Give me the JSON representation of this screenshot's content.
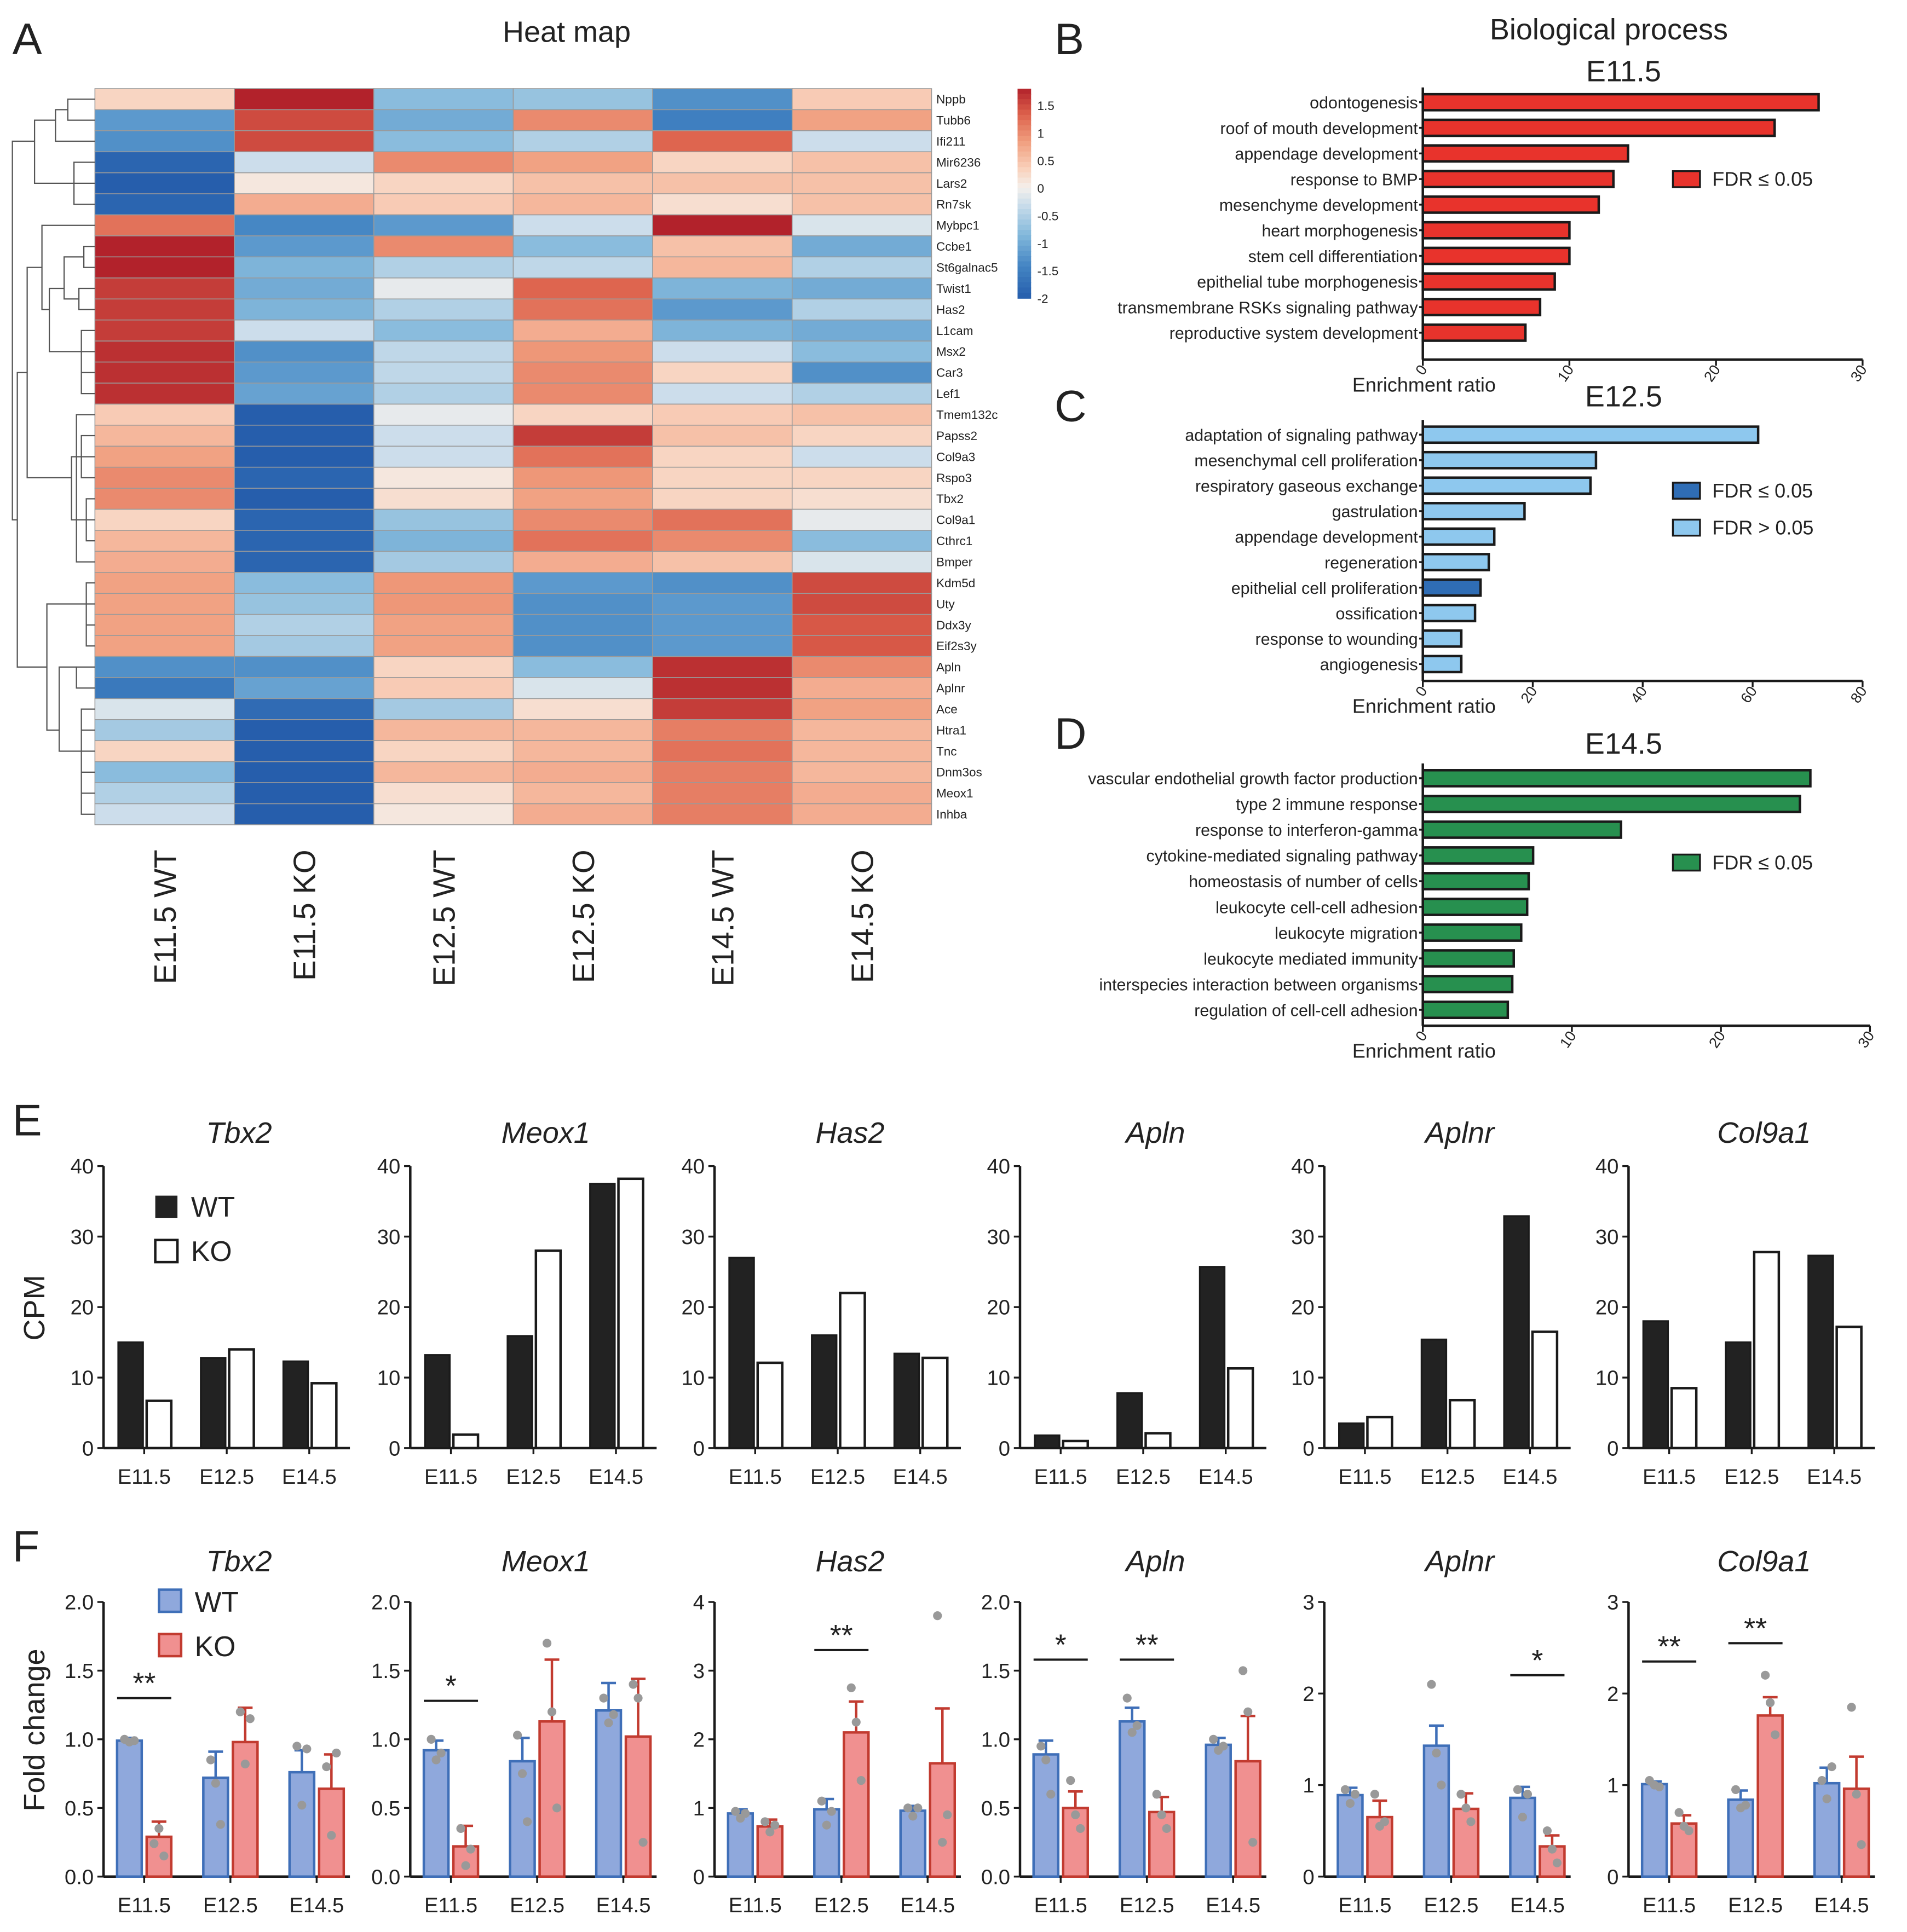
{
  "panel_letters": {
    "a": "A",
    "b": "B",
    "c": "C",
    "d": "D",
    "e": "E",
    "f": "F"
  },
  "colors": {
    "fdr_sig_red": "#e8332c",
    "fdr_sig_blue": "#2f6db5",
    "fdr_ns_lightblue": "#8ec8ee",
    "fdr_sig_green": "#27904f",
    "wt_black": "#222222",
    "qpcr_wt": "#8fa8dc",
    "qpcr_ko": "#f09090",
    "qpcr_wt_err": "#3f6fb8",
    "qpcr_ko_err": "#c23b30",
    "point": "#999999"
  },
  "chart_data": [
    {
      "id": "A",
      "type": "heatmap",
      "title": "Heat map",
      "columns": [
        "E11.5 WT",
        "E11.5 KO",
        "E12.5 WT",
        "E12.5 KO",
        "E14.5 WT",
        "E14.5 KO"
      ],
      "rows": [
        "Nppb",
        "Tubb6",
        "Ifi211",
        "Mir6236",
        "Lars2",
        "Rn7sk",
        "Mybpc1",
        "Ccbe1",
        "St6galnac5",
        "Twist1",
        "Has2",
        "L1cam",
        "Msx2",
        "Car3",
        "Lef1",
        "Tmem132c",
        "Papss2",
        "Col9a3",
        "Rspo3",
        "Tbx2",
        "Col9a1",
        "Cthrc1",
        "Bmper",
        "Kdm5d",
        "Uty",
        "Ddx3y",
        "Eif2s3y",
        "Apln",
        "Aplnr",
        "Ace",
        "Htra1",
        "Tnc",
        "Dnm3os",
        "Meox1",
        "Inhba"
      ],
      "values": [
        [
          0.3,
          1.8,
          -0.8,
          -0.7,
          -1.3,
          0.4
        ],
        [
          -1.2,
          1.5,
          -1.0,
          1.0,
          -1.5,
          0.8
        ],
        [
          -1.3,
          1.5,
          -0.8,
          -0.5,
          1.3,
          -0.3
        ],
        [
          -1.9,
          -0.3,
          1.0,
          0.8,
          0.3,
          0.5
        ],
        [
          -2.0,
          0.1,
          0.3,
          0.5,
          0.5,
          0.5
        ],
        [
          -1.9,
          0.7,
          0.4,
          0.6,
          0.2,
          0.5
        ],
        [
          1.2,
          -1.4,
          -1.2,
          -0.3,
          1.8,
          -0.2
        ],
        [
          1.8,
          -1.2,
          1.0,
          -0.8,
          0.5,
          -1.0
        ],
        [
          1.8,
          -0.9,
          -0.5,
          -0.4,
          0.6,
          -0.5
        ],
        [
          1.6,
          -1.0,
          -0.1,
          1.3,
          -0.9,
          -1.0
        ],
        [
          1.6,
          -0.9,
          -0.5,
          1.2,
          -1.2,
          -0.5
        ],
        [
          1.6,
          -0.3,
          -0.8,
          0.7,
          -0.9,
          -1.0
        ],
        [
          1.7,
          -1.3,
          -0.4,
          0.9,
          -0.3,
          -0.8
        ],
        [
          1.7,
          -1.2,
          -0.4,
          1.0,
          0.3,
          -1.3
        ],
        [
          1.7,
          -1.1,
          -0.5,
          1.0,
          -0.3,
          -0.5
        ],
        [
          0.4,
          -2.0,
          -0.1,
          0.3,
          0.4,
          0.5
        ],
        [
          0.6,
          -2.0,
          -0.3,
          1.6,
          0.5,
          0.3
        ],
        [
          0.8,
          -2.0,
          -0.3,
          1.2,
          0.3,
          -0.3
        ],
        [
          1.0,
          -1.9,
          0.1,
          0.9,
          0.3,
          0.3
        ],
        [
          1.0,
          -2.0,
          0.2,
          0.8,
          0.3,
          0.2
        ],
        [
          0.3,
          -1.9,
          -0.7,
          1.0,
          1.2,
          -0.1
        ],
        [
          0.6,
          -1.9,
          -0.9,
          1.2,
          1.0,
          -0.8
        ],
        [
          0.7,
          -1.9,
          -0.6,
          0.7,
          0.5,
          -0.2
        ],
        [
          0.8,
          -0.8,
          0.9,
          -1.2,
          -1.3,
          1.5
        ],
        [
          0.8,
          -0.7,
          0.9,
          -1.3,
          -1.2,
          1.5
        ],
        [
          0.8,
          -0.5,
          0.8,
          -1.3,
          -1.2,
          1.4
        ],
        [
          0.8,
          -0.6,
          0.8,
          -1.3,
          -1.2,
          1.4
        ],
        [
          -1.3,
          -1.3,
          0.3,
          -0.8,
          1.7,
          1.0
        ],
        [
          -1.6,
          -1.1,
          0.4,
          -0.2,
          1.7,
          0.7
        ],
        [
          -0.2,
          -1.8,
          -0.6,
          0.2,
          1.6,
          0.8
        ],
        [
          -0.6,
          -2.0,
          0.6,
          0.6,
          1.1,
          0.6
        ],
        [
          0.3,
          -2.0,
          0.3,
          0.6,
          1.2,
          0.6
        ],
        [
          -0.8,
          -2.0,
          0.6,
          0.7,
          1.1,
          0.6
        ],
        [
          -0.5,
          -2.0,
          0.2,
          0.6,
          1.1,
          0.7
        ],
        [
          -0.3,
          -2.0,
          0.1,
          0.7,
          1.1,
          0.7
        ]
      ],
      "colorbar": {
        "range": [
          -2,
          1.8
        ],
        "ticks": [
          "1.5",
          "1",
          "0.5",
          "0",
          "-0.5",
          "-1",
          "-1.5",
          "-2"
        ]
      }
    },
    {
      "id": "B",
      "type": "bar",
      "orientation": "horizontal",
      "supertitle": "Biological process",
      "title": "E11.5",
      "xlabel": "Enrichment ratio",
      "xlim": [
        0,
        30
      ],
      "xticks": [
        "0",
        "10",
        "20",
        "30"
      ],
      "categories": [
        "odontogenesis",
        "roof of mouth development",
        "appendage development",
        "response to BMP",
        "mesenchyme development",
        "heart morphogenesis",
        "stem cell differentiation",
        "epithelial tube morphogenesis",
        "transmembrane RSKs signaling pathway",
        "reproductive system development"
      ],
      "values": [
        27,
        24,
        14,
        13,
        12,
        10,
        10,
        9,
        8,
        7
      ],
      "significant": [
        true,
        true,
        true,
        true,
        true,
        true,
        true,
        true,
        true,
        true
      ],
      "legend": [
        {
          "label": "FDR ≤ 0.05",
          "color": "#e8332c"
        }
      ]
    },
    {
      "id": "C",
      "type": "bar",
      "orientation": "horizontal",
      "title": "E12.5",
      "xlabel": "Enrichment ratio",
      "xlim": [
        0,
        80
      ],
      "xticks": [
        "0",
        "20",
        "40",
        "60",
        "80"
      ],
      "categories": [
        "adaptation of signaling pathway",
        "mesenchymal cell proliferation",
        "respiratory gaseous exchange",
        "gastrulation",
        "appendage development",
        "regeneration",
        "epithelial cell proliferation",
        "ossification",
        "response to wounding",
        "angiogenesis"
      ],
      "values": [
        61,
        31.5,
        30.5,
        18.5,
        13,
        12,
        10.5,
        9.5,
        7,
        7
      ],
      "significant": [
        false,
        false,
        false,
        false,
        false,
        false,
        true,
        false,
        false,
        false
      ],
      "legend": [
        {
          "label": "FDR ≤ 0.05",
          "color": "#2f6db5"
        },
        {
          "label": "FDR > 0.05",
          "color": "#8ec8ee"
        }
      ]
    },
    {
      "id": "D",
      "type": "bar",
      "orientation": "horizontal",
      "title": "E14.5",
      "xlabel": "Enrichment ratio",
      "xlim": [
        0,
        30
      ],
      "xticks": [
        "0",
        "10",
        "20",
        "30"
      ],
      "categories": [
        "vascular endothelial growth factor production",
        "type 2 immune response",
        "response to interferon-gamma",
        "cytokine-mediated signaling pathway",
        "homeostasis of number of cells",
        "leukocyte cell-cell adhesion",
        "leukocyte migration",
        "leukocyte mediated immunity",
        "interspecies interaction between organisms",
        "regulation of cell-cell adhesion"
      ],
      "values": [
        26,
        25.3,
        13.3,
        7.4,
        7.1,
        7,
        6.6,
        6.1,
        6,
        5.7
      ],
      "significant": [
        true,
        true,
        true,
        true,
        true,
        true,
        true,
        true,
        true,
        true
      ],
      "legend": [
        {
          "label": "FDR ≤ 0.05",
          "color": "#27904f"
        }
      ]
    },
    {
      "id": "E",
      "type": "bar",
      "ylabel": "CPM",
      "ylim": [
        0,
        40
      ],
      "yticks": [
        "0",
        "10",
        "20",
        "30",
        "40"
      ],
      "categories": [
        "E11.5",
        "E12.5",
        "E14.5"
      ],
      "legend": [
        "WT",
        "KO"
      ],
      "genes": [
        {
          "name": "Tbx2",
          "wt": [
            15,
            12.8,
            12.3
          ],
          "ko": [
            6.7,
            14,
            9.2
          ]
        },
        {
          "name": "Meox1",
          "wt": [
            13.2,
            15.9,
            37.5
          ],
          "ko": [
            1.9,
            28,
            38.2
          ]
        },
        {
          "name": "Has2",
          "wt": [
            27,
            16,
            13.4
          ],
          "ko": [
            12.1,
            22,
            12.8
          ]
        },
        {
          "name": "Apln",
          "wt": [
            1.8,
            7.8,
            25.7
          ],
          "ko": [
            1,
            2.1,
            11.3
          ]
        },
        {
          "name": "Aplnr",
          "wt": [
            3.5,
            15.4,
            32.9
          ],
          "ko": [
            4.4,
            6.8,
            16.5
          ]
        },
        {
          "name": "Col9a1",
          "wt": [
            18,
            15,
            27.3
          ],
          "ko": [
            8.5,
            27.8,
            17.2
          ]
        }
      ]
    },
    {
      "id": "F",
      "type": "bar",
      "ylabel": "Fold change",
      "categories": [
        "E11.5",
        "E12.5",
        "E14.5"
      ],
      "legend": [
        "WT",
        "KO"
      ],
      "genes": [
        {
          "name": "Tbx2",
          "ylim": [
            0,
            2
          ],
          "yticks": [
            "0.0",
            "0.5",
            "1.0",
            "1.5",
            "2.0"
          ],
          "wt": [
            0.99,
            0.72,
            0.76
          ],
          "wt_err": [
            0.02,
            0.19,
            0.16
          ],
          "ko": [
            0.29,
            0.98,
            0.64
          ],
          "ko_err": [
            0.11,
            0.25,
            0.25
          ],
          "wt_pts": [
            [
              1,
              0.98,
              0.99
            ],
            [
              0.85,
              0.68,
              0.38
            ],
            [
              0.95,
              0.52,
              0.93
            ]
          ],
          "ko_pts": [
            [
              0.24,
              0.35,
              0.15
            ],
            [
              1.2,
              0.82,
              1.15
            ],
            [
              0.8,
              0.3,
              0.9
            ]
          ],
          "sig": [
            {
              "cat": 0,
              "text": "**",
              "y": 1.3
            }
          ]
        },
        {
          "name": "Meox1",
          "ylim": [
            0,
            2
          ],
          "yticks": [
            "0.0",
            "0.5",
            "1.0",
            "1.5",
            "2.0"
          ],
          "wt": [
            0.92,
            0.84,
            1.21
          ],
          "wt_err": [
            0.07,
            0.17,
            0.2
          ],
          "ko": [
            0.22,
            1.13,
            1.02
          ],
          "ko_err": [
            0.15,
            0.45,
            0.42
          ],
          "wt_pts": [
            [
              1,
              0.85,
              0.9
            ],
            [
              1.03,
              0.75,
              0.4
            ],
            [
              1.3,
              1.12,
              1.18
            ]
          ],
          "ko_pts": [
            [
              0.35,
              0.08,
              0.2
            ],
            [
              1.7,
              1.2,
              0.5
            ],
            [
              1.4,
              1.3,
              0.25
            ]
          ],
          "sig": [
            {
              "cat": 0,
              "text": "*",
              "y": 1.28
            }
          ]
        },
        {
          "name": "Has2",
          "ylim": [
            0,
            4
          ],
          "yticks": [
            "0",
            "1",
            "2",
            "3",
            "4"
          ],
          "wt": [
            0.92,
            0.98,
            0.96
          ],
          "wt_err": [
            0.06,
            0.15,
            0.07
          ],
          "ko": [
            0.73,
            2.1,
            1.65
          ],
          "ko_err": [
            0.1,
            0.45,
            0.8
          ],
          "wt_pts": [
            [
              0.95,
              0.85,
              0.92
            ],
            [
              1.1,
              0.75,
              0.95
            ],
            [
              1.0,
              0.88,
              1.0
            ]
          ],
          "ko_pts": [
            [
              0.8,
              0.65,
              0.75
            ],
            [
              2.75,
              2.25,
              1.4
            ],
            [
              3.8,
              0.5,
              0.9
            ]
          ],
          "sig": [
            {
              "cat": 1,
              "text": "**",
              "y": 3.3
            }
          ]
        },
        {
          "name": "Apln",
          "ylim": [
            0,
            2
          ],
          "yticks": [
            "0.0",
            "0.5",
            "1.0",
            "1.5",
            "2.0"
          ],
          "wt": [
            0.89,
            1.13,
            0.96
          ],
          "wt_err": [
            0.1,
            0.1,
            0.05
          ],
          "ko": [
            0.5,
            0.47,
            0.84
          ],
          "ko_err": [
            0.12,
            0.11,
            0.33
          ],
          "wt_pts": [
            [
              0.95,
              0.85,
              0.6
            ],
            [
              1.3,
              1.05,
              1.1
            ],
            [
              1.0,
              0.92,
              0.95
            ]
          ],
          "ko_pts": [
            [
              0.7,
              0.45,
              0.35
            ],
            [
              0.6,
              0.45,
              0.35
            ],
            [
              1.5,
              1.2,
              0.25
            ]
          ],
          "sig": [
            {
              "cat": 0,
              "text": "*",
              "y": 1.58
            },
            {
              "cat": 1,
              "text": "**",
              "y": 1.58
            }
          ]
        },
        {
          "name": "Aplnr",
          "ylim": [
            0,
            3
          ],
          "yticks": [
            "0",
            "1",
            "2",
            "3"
          ],
          "wt": [
            0.89,
            1.43,
            0.86
          ],
          "wt_err": [
            0.08,
            0.22,
            0.12
          ],
          "ko": [
            0.65,
            0.74,
            0.33
          ],
          "ko_err": [
            0.18,
            0.17,
            0.12
          ],
          "wt_pts": [
            [
              0.95,
              0.8,
              0.9
            ],
            [
              2.1,
              1.35,
              1.0
            ],
            [
              0.95,
              0.65,
              0.9
            ]
          ],
          "ko_pts": [
            [
              0.9,
              0.55,
              0.6
            ],
            [
              0.9,
              0.75,
              0.6
            ],
            [
              0.5,
              0.3,
              0.15
            ]
          ],
          "sig": [
            {
              "cat": 2,
              "text": "*",
              "y": 2.2
            }
          ]
        },
        {
          "name": "Col9a1",
          "ylim": [
            0,
            3
          ],
          "yticks": [
            "0",
            "1",
            "2",
            "3"
          ],
          "wt": [
            1.01,
            0.84,
            1.02
          ],
          "wt_err": [
            0.03,
            0.1,
            0.17
          ],
          "ko": [
            0.58,
            1.76,
            0.96
          ],
          "ko_err": [
            0.09,
            0.2,
            0.35
          ],
          "wt_pts": [
            [
              1.05,
              1.0,
              0.98
            ],
            [
              0.95,
              0.75,
              0.78
            ],
            [
              1.05,
              0.85,
              1.2
            ]
          ],
          "ko_pts": [
            [
              0.7,
              0.55,
              0.5
            ],
            [
              2.2,
              1.9,
              1.55
            ],
            [
              1.85,
              0.9,
              0.35
            ]
          ],
          "sig": [
            {
              "cat": 0,
              "text": "**",
              "y": 2.35
            },
            {
              "cat": 1,
              "text": "**",
              "y": 2.55
            }
          ]
        }
      ]
    }
  ]
}
